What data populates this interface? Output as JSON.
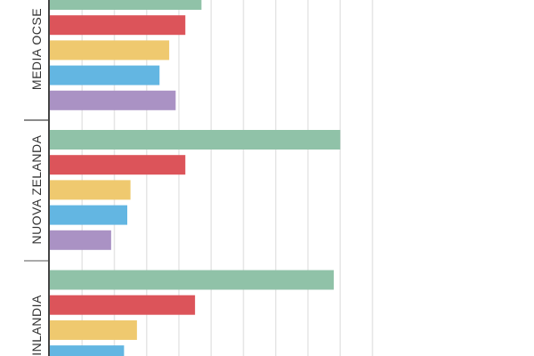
{
  "chart_data": {
    "type": "bar",
    "orientation": "horizontal",
    "grid": true,
    "categories": [
      "MEDIA OCSE",
      "NUOVA ZELANDA",
      "FINLANDIA"
    ],
    "series_colors": [
      "#90c2a8",
      "#dc545a",
      "#efc96f",
      "#63b6e2",
      "#aa92c4"
    ],
    "values_unit": "gridline intervals (no tick labels shown)",
    "series": [
      {
        "values": [
          4.7,
          9.0,
          8.8
        ]
      },
      {
        "values": [
          4.2,
          4.2,
          4.5
        ]
      },
      {
        "values": [
          3.7,
          2.5,
          2.7
        ]
      },
      {
        "values": [
          3.4,
          2.4,
          2.3
        ]
      },
      {
        "values": [
          3.9,
          1.9,
          null
        ]
      }
    ],
    "xlim": [
      0,
      10
    ]
  }
}
